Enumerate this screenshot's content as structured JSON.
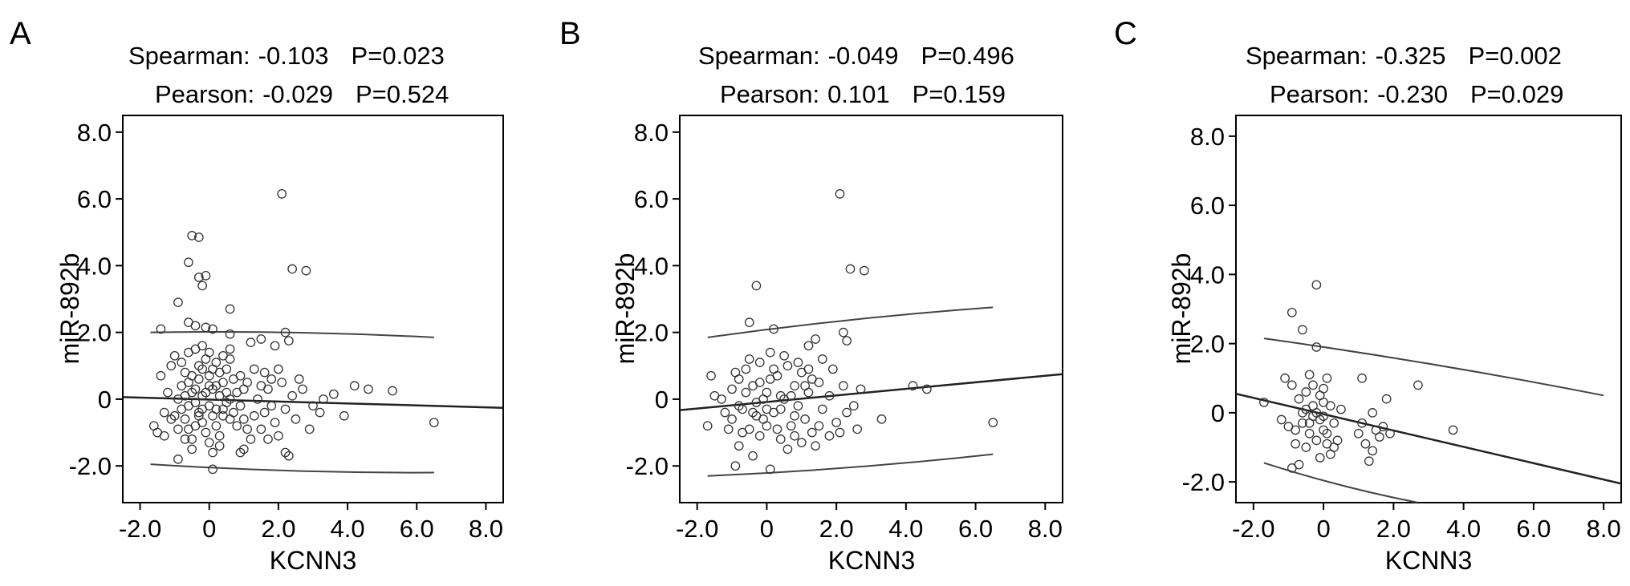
{
  "chart_data": [
    {
      "panel": "A",
      "type": "scatter",
      "stats": {
        "spearman_label": "Spearman:",
        "spearman_value": "-0.103",
        "spearman_p": "P=0.023",
        "pearson_label": "Pearson:",
        "pearson_value": "-0.029",
        "pearson_p": "P=0.524"
      },
      "xlabel": "KCNN3",
      "ylabel": "miR-892b",
      "xlim": [
        -2.5,
        8.5
      ],
      "ylim": [
        -3.1,
        8.5
      ],
      "xticks": [
        -2.0,
        0,
        2.0,
        4.0,
        6.0,
        8.0
      ],
      "xtick_labels": [
        "-2.0",
        "0",
        "2.0",
        "4.0",
        "6.0",
        "8.0"
      ],
      "yticks": [
        -2.0,
        0,
        2.0,
        4.0,
        6.0,
        8.0
      ],
      "ytick_labels": [
        "-2.0",
        "0",
        "2.0",
        "4.0",
        "6.0",
        "8.0"
      ],
      "fit_line": {
        "x": [
          -2.5,
          8.5
        ],
        "y": [
          0.06,
          -0.26
        ]
      },
      "ci_upper": {
        "x": [
          -1.7,
          6.5
        ],
        "y": [
          2.0,
          1.85
        ]
      },
      "ci_lower": {
        "x": [
          -1.7,
          6.5
        ],
        "y": [
          -1.95,
          -2.2
        ]
      },
      "points": [
        [
          2.1,
          6.15
        ],
        [
          -0.5,
          4.9
        ],
        [
          -0.3,
          4.85
        ],
        [
          -0.6,
          4.1
        ],
        [
          -0.1,
          3.7
        ],
        [
          -0.3,
          3.65
        ],
        [
          -0.2,
          3.4
        ],
        [
          0.6,
          2.7
        ],
        [
          2.4,
          3.9
        ],
        [
          2.8,
          3.85
        ],
        [
          -0.9,
          2.9
        ],
        [
          -1.4,
          2.1
        ],
        [
          -0.6,
          2.3
        ],
        [
          -0.4,
          2.2
        ],
        [
          -0.1,
          2.15
        ],
        [
          0.1,
          2.1
        ],
        [
          0.6,
          1.95
        ],
        [
          2.2,
          2.0
        ],
        [
          2.3,
          1.75
        ],
        [
          1.5,
          1.8
        ],
        [
          1.2,
          1.7
        ],
        [
          1.9,
          1.6
        ],
        [
          4.2,
          0.4
        ],
        [
          4.6,
          0.3
        ],
        [
          5.3,
          0.25
        ],
        [
          3.6,
          0.15
        ],
        [
          6.5,
          -0.7
        ],
        [
          3.9,
          -0.5
        ],
        [
          3.2,
          -0.4
        ],
        [
          2.6,
          0.6
        ],
        [
          2.2,
          -1.6
        ],
        [
          2.3,
          -1.7
        ],
        [
          1.0,
          -1.5
        ],
        [
          0.1,
          -2.1
        ],
        [
          0.9,
          -1.6
        ],
        [
          -0.9,
          -1.8
        ],
        [
          -1.6,
          -0.8
        ],
        [
          -1.5,
          -1.0
        ],
        [
          -1.3,
          -0.4
        ],
        [
          -1.2,
          0.2
        ],
        [
          -1.4,
          0.7
        ],
        [
          -1.1,
          1.0
        ],
        [
          -1.0,
          1.3
        ],
        [
          -0.8,
          1.1
        ],
        [
          -0.7,
          0.8
        ],
        [
          -0.6,
          0.5
        ],
        [
          -0.5,
          0.2
        ],
        [
          -0.4,
          -0.1
        ],
        [
          -0.3,
          -0.4
        ],
        [
          -0.2,
          -0.7
        ],
        [
          -0.1,
          -1.0
        ],
        [
          0.0,
          -1.3
        ],
        [
          0.1,
          -1.6
        ],
        [
          0.2,
          -0.3
        ],
        [
          0.3,
          0.1
        ],
        [
          0.4,
          0.5
        ],
        [
          0.5,
          0.9
        ],
        [
          0.6,
          1.2
        ],
        [
          0.7,
          0.6
        ],
        [
          0.8,
          0.2
        ],
        [
          0.9,
          -0.2
        ],
        [
          1.0,
          -0.6
        ],
        [
          1.1,
          -0.9
        ],
        [
          1.2,
          -1.2
        ],
        [
          1.3,
          -0.5
        ],
        [
          1.4,
          0.0
        ],
        [
          1.5,
          0.4
        ],
        [
          1.6,
          0.8
        ],
        [
          1.7,
          0.3
        ],
        [
          1.8,
          -0.2
        ],
        [
          1.9,
          -0.7
        ],
        [
          2.0,
          -1.1
        ],
        [
          2.1,
          0.5
        ],
        [
          2.2,
          -0.3
        ],
        [
          2.4,
          0.1
        ],
        [
          2.5,
          -0.6
        ],
        [
          2.7,
          0.3
        ],
        [
          2.9,
          -0.9
        ],
        [
          3.0,
          -0.2
        ],
        [
          3.3,
          0.0
        ],
        [
          -0.9,
          0.0
        ],
        [
          -0.8,
          -0.3
        ],
        [
          -0.7,
          -0.6
        ],
        [
          -0.6,
          -0.9
        ],
        [
          -0.5,
          -1.2
        ],
        [
          -0.4,
          -0.8
        ],
        [
          -0.3,
          0.6
        ],
        [
          -0.2,
          0.9
        ],
        [
          -0.1,
          1.2
        ],
        [
          0.0,
          0.7
        ],
        [
          0.1,
          0.3
        ],
        [
          0.2,
          -0.8
        ],
        [
          0.3,
          -1.1
        ],
        [
          0.4,
          -0.5
        ],
        [
          0.5,
          -0.1
        ],
        [
          0.6,
          0.0
        ],
        [
          0.7,
          -0.4
        ],
        [
          0.8,
          -0.8
        ],
        [
          0.9,
          0.7
        ],
        [
          1.0,
          0.3
        ],
        [
          -0.8,
          0.4
        ],
        [
          -0.6,
          -0.2
        ],
        [
          -0.4,
          0.3
        ],
        [
          -0.2,
          0.1
        ],
        [
          0.0,
          -0.2
        ],
        [
          0.2,
          0.4
        ],
        [
          0.4,
          -0.3
        ],
        [
          0.6,
          -0.6
        ],
        [
          -0.5,
          0.7
        ],
        [
          -0.3,
          -0.5
        ],
        [
          -0.1,
          0.2
        ],
        [
          0.1,
          -0.5
        ],
        [
          0.3,
          0.8
        ],
        [
          -0.7,
          0.1
        ],
        [
          -0.2,
          -0.3
        ],
        [
          0.0,
          0.4
        ],
        [
          0.5,
          0.2
        ],
        [
          -1.0,
          -0.5
        ],
        [
          1.1,
          0.5
        ],
        [
          1.3,
          0.9
        ],
        [
          -0.4,
          1.5
        ],
        [
          -0.2,
          1.6
        ],
        [
          0.0,
          1.4
        ],
        [
          0.2,
          1.1
        ],
        [
          0.4,
          1.3
        ],
        [
          0.6,
          1.5
        ],
        [
          -0.6,
          1.4
        ],
        [
          -0.3,
          1.0
        ],
        [
          0.1,
          0.9
        ],
        [
          0.3,
          -1.4
        ],
        [
          -0.5,
          -1.5
        ],
        [
          -0.7,
          -1.2
        ],
        [
          -0.9,
          -0.9
        ],
        [
          -1.1,
          -0.6
        ],
        [
          -1.3,
          -1.1
        ],
        [
          1.5,
          -0.9
        ],
        [
          1.7,
          -1.2
        ],
        [
          1.8,
          0.6
        ],
        [
          2.0,
          0.9
        ],
        [
          1.6,
          -0.4
        ]
      ]
    },
    {
      "panel": "B",
      "type": "scatter",
      "stats": {
        "spearman_label": "Spearman:",
        "spearman_value": "-0.049",
        "spearman_p": "P=0.496",
        "pearson_label": "Pearson:",
        "pearson_value": "0.101",
        "pearson_p": "P=0.159"
      },
      "xlabel": "KCNN3",
      "ylabel": "miR-892b",
      "xlim": [
        -2.5,
        8.5
      ],
      "ylim": [
        -3.1,
        8.5
      ],
      "xticks": [
        -2.0,
        0,
        2.0,
        4.0,
        6.0,
        8.0
      ],
      "xtick_labels": [
        "-2.0",
        "0",
        "2.0",
        "4.0",
        "6.0",
        "8.0"
      ],
      "yticks": [
        -2.0,
        0,
        2.0,
        4.0,
        6.0,
        8.0
      ],
      "ytick_labels": [
        "-2.0",
        "0",
        "2.0",
        "4.0",
        "6.0",
        "8.0"
      ],
      "fit_line": {
        "x": [
          -2.5,
          8.5
        ],
        "y": [
          -0.33,
          0.75
        ]
      },
      "ci_upper": {
        "x": [
          -1.7,
          6.5
        ],
        "y": [
          1.85,
          2.75
        ]
      },
      "ci_lower": {
        "x": [
          -1.7,
          6.5
        ],
        "y": [
          -2.3,
          -1.65
        ]
      },
      "points": [
        [
          2.1,
          6.15
        ],
        [
          2.4,
          3.9
        ],
        [
          2.8,
          3.85
        ],
        [
          -0.3,
          3.4
        ],
        [
          -0.5,
          2.3
        ],
        [
          0.2,
          2.1
        ],
        [
          2.2,
          2.0
        ],
        [
          2.3,
          1.75
        ],
        [
          1.4,
          1.8
        ],
        [
          1.2,
          1.6
        ],
        [
          -1.6,
          0.7
        ],
        [
          -1.5,
          0.1
        ],
        [
          -1.7,
          -0.8
        ],
        [
          -1.2,
          -0.4
        ],
        [
          -1.0,
          0.3
        ],
        [
          -0.8,
          0.6
        ],
        [
          -0.7,
          -0.3
        ],
        [
          -0.6,
          0.9
        ],
        [
          -0.5,
          -0.9
        ],
        [
          -0.4,
          0.4
        ],
        [
          -0.3,
          -0.1
        ],
        [
          -0.2,
          1.1
        ],
        [
          -0.1,
          -0.6
        ],
        [
          0.0,
          0.2
        ],
        [
          0.1,
          1.4
        ],
        [
          0.2,
          -0.4
        ],
        [
          0.3,
          0.7
        ],
        [
          0.4,
          -1.2
        ],
        [
          0.5,
          0.0
        ],
        [
          0.6,
          1.0
        ],
        [
          0.7,
          -0.8
        ],
        [
          0.8,
          0.4
        ],
        [
          0.9,
          -0.2
        ],
        [
          1.0,
          0.8
        ],
        [
          1.1,
          -0.6
        ],
        [
          1.2,
          0.2
        ],
        [
          1.3,
          -1.0
        ],
        [
          1.5,
          0.5
        ],
        [
          1.6,
          -0.3
        ],
        [
          1.8,
          0.1
        ],
        [
          2.0,
          -0.7
        ],
        [
          2.2,
          0.4
        ],
        [
          2.5,
          -0.2
        ],
        [
          2.7,
          0.3
        ],
        [
          3.3,
          -0.6
        ],
        [
          4.2,
          0.4
        ],
        [
          4.6,
          0.3
        ],
        [
          6.5,
          -0.7
        ],
        [
          2.6,
          -0.9
        ],
        [
          2.1,
          -1.0
        ],
        [
          -0.9,
          -2.0
        ],
        [
          0.1,
          -2.1
        ],
        [
          -0.8,
          -1.4
        ],
        [
          -0.4,
          -1.7
        ],
        [
          0.6,
          -1.5
        ],
        [
          1.0,
          -1.3
        ],
        [
          -0.2,
          -1.1
        ],
        [
          0.3,
          -0.9
        ],
        [
          1.4,
          -1.4
        ],
        [
          1.8,
          -1.1
        ],
        [
          -1.1,
          -0.9
        ],
        [
          -0.7,
          -1.0
        ],
        [
          -0.3,
          -0.5
        ],
        [
          0.0,
          -0.8
        ],
        [
          0.4,
          -0.3
        ],
        [
          0.8,
          -0.5
        ],
        [
          1.2,
          0.9
        ],
        [
          1.6,
          1.2
        ],
        [
          -0.6,
          0.2
        ],
        [
          -0.2,
          0.5
        ],
        [
          0.2,
          0.9
        ],
        [
          0.5,
          1.3
        ],
        [
          0.9,
          1.1
        ],
        [
          -1.3,
          0.0
        ],
        [
          -0.9,
          0.8
        ],
        [
          -0.5,
          1.2
        ],
        [
          0.1,
          0.6
        ],
        [
          0.7,
          0.1
        ],
        [
          1.1,
          0.4
        ],
        [
          1.5,
          -0.8
        ],
        [
          -0.8,
          -0.2
        ],
        [
          -0.4,
          -0.4
        ],
        [
          0.0,
          -0.3
        ],
        [
          0.4,
          0.1
        ],
        [
          0.8,
          -1.1
        ],
        [
          1.3,
          0.6
        ],
        [
          1.9,
          0.9
        ],
        [
          2.3,
          -0.4
        ],
        [
          -1.0,
          -0.6
        ],
        [
          -0.1,
          0.0
        ]
      ]
    },
    {
      "panel": "C",
      "type": "scatter",
      "stats": {
        "spearman_label": "Spearman:",
        "spearman_value": "-0.325",
        "spearman_p": "P=0.002",
        "pearson_label": "Pearson:",
        "pearson_value": "-0.230",
        "pearson_p": "P=0.029"
      },
      "xlabel": "KCNN3",
      "ylabel": "miR-892b",
      "xlim": [
        -2.5,
        8.5
      ],
      "ylim": [
        -2.6,
        8.6
      ],
      "xticks": [
        -2.0,
        0,
        2.0,
        4.0,
        6.0,
        8.0
      ],
      "xtick_labels": [
        "-2.0",
        "0",
        "2.0",
        "4.0",
        "6.0",
        "8.0"
      ],
      "yticks": [
        -2.0,
        0,
        2.0,
        4.0,
        6.0,
        8.0
      ],
      "ytick_labels": [
        "-2.0",
        "0",
        "2.0",
        "4.0",
        "6.0",
        "8.0"
      ],
      "fit_line": {
        "x": [
          -2.5,
          8.5
        ],
        "y": [
          0.55,
          -2.05
        ]
      },
      "ci_upper": {
        "x": [
          -1.7,
          8.0
        ],
        "y": [
          2.15,
          0.5
        ]
      },
      "ci_lower": {
        "x": [
          -1.7,
          2.7
        ],
        "y": [
          -1.45,
          -2.6
        ]
      },
      "points": [
        [
          -0.2,
          3.7
        ],
        [
          -0.9,
          2.9
        ],
        [
          -0.6,
          2.4
        ],
        [
          -0.2,
          1.9
        ],
        [
          -1.7,
          0.3
        ],
        [
          -1.1,
          1.0
        ],
        [
          -0.9,
          0.8
        ],
        [
          -0.7,
          0.4
        ],
        [
          -0.5,
          0.6
        ],
        [
          -0.4,
          1.1
        ],
        [
          -0.3,
          0.2
        ],
        [
          -0.2,
          0.0
        ],
        [
          -0.1,
          -0.2
        ],
        [
          0.0,
          0.3
        ],
        [
          0.1,
          1.0
        ],
        [
          -0.6,
          -0.3
        ],
        [
          -0.8,
          -0.5
        ],
        [
          -1.0,
          -0.4
        ],
        [
          -0.4,
          -0.6
        ],
        [
          -0.2,
          -0.8
        ],
        [
          0.0,
          -0.5
        ],
        [
          0.1,
          -0.9
        ],
        [
          0.2,
          -1.2
        ],
        [
          -0.1,
          -1.3
        ],
        [
          -0.5,
          -1.0
        ],
        [
          -0.7,
          -1.5
        ],
        [
          -0.9,
          -1.6
        ],
        [
          1.1,
          1.0
        ],
        [
          1.8,
          0.4
        ],
        [
          2.7,
          0.8
        ],
        [
          3.7,
          -0.5
        ],
        [
          1.0,
          -0.6
        ],
        [
          1.2,
          -0.9
        ],
        [
          1.4,
          -1.1
        ],
        [
          1.5,
          -0.5
        ],
        [
          1.6,
          -0.7
        ],
        [
          1.3,
          -1.4
        ],
        [
          1.4,
          0.0
        ],
        [
          0.3,
          -0.3
        ],
        [
          0.5,
          0.1
        ],
        [
          -0.3,
          -0.1
        ],
        [
          0.0,
          -0.1
        ],
        [
          0.2,
          0.2
        ],
        [
          -0.5,
          0.1
        ],
        [
          -0.8,
          -0.9
        ],
        [
          -0.3,
          0.8
        ],
        [
          0.1,
          -0.6
        ],
        [
          0.4,
          -0.8
        ],
        [
          1.9,
          -0.6
        ],
        [
          -1.2,
          -0.2
        ],
        [
          -0.6,
          0.0
        ],
        [
          0.0,
          0.7
        ],
        [
          0.3,
          -1.0
        ],
        [
          -0.4,
          -0.3
        ],
        [
          1.1,
          -0.3
        ],
        [
          1.7,
          -0.4
        ],
        [
          -0.1,
          0.5
        ]
      ]
    }
  ]
}
